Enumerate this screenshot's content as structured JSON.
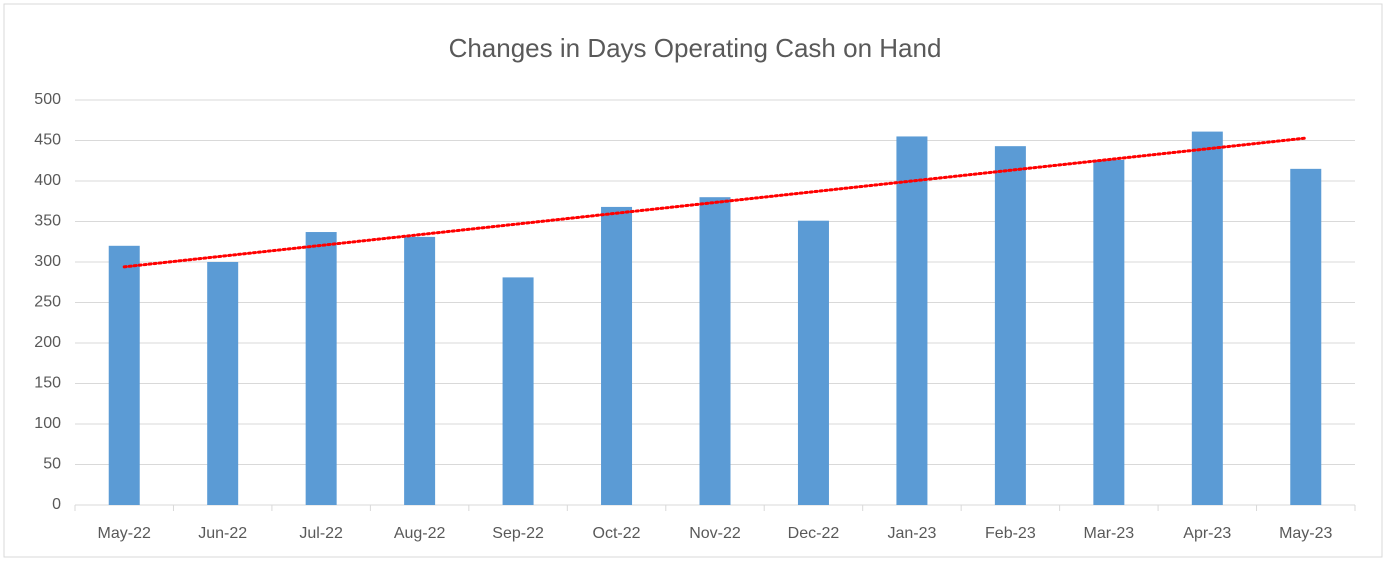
{
  "chart_data": {
    "type": "bar",
    "title": "Changes in Days Operating Cash on Hand",
    "categories": [
      "May-22",
      "Jun-22",
      "Jul-22",
      "Aug-22",
      "Sep-22",
      "Oct-22",
      "Nov-22",
      "Dec-22",
      "Jan-23",
      "Feb-23",
      "Mar-23",
      "Apr-23",
      "May-23"
    ],
    "values": [
      320,
      300,
      337,
      331,
      281,
      368,
      380,
      351,
      455,
      443,
      426,
      461,
      415
    ],
    "color": "#5b9bd5",
    "ylim": [
      0,
      500
    ],
    "yticks": [
      0,
      50,
      100,
      150,
      200,
      250,
      300,
      350,
      400,
      450,
      500
    ],
    "grid": true,
    "trendline": {
      "color": "#ff0000",
      "style": "dotted",
      "start": 294,
      "end": 453
    }
  }
}
